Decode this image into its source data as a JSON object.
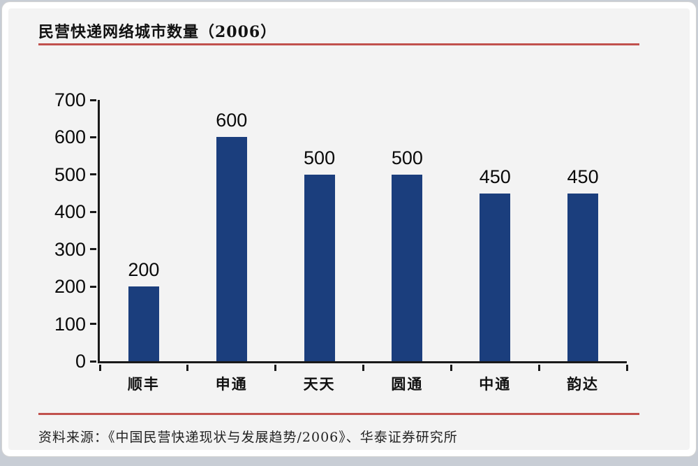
{
  "chart_data": {
    "type": "bar",
    "title": "民营快递网络城市数量（2006）",
    "categories": [
      "顺丰",
      "申通",
      "天天",
      "圆通",
      "中通",
      "韵达"
    ],
    "values": [
      200,
      600,
      500,
      500,
      450,
      450
    ],
    "xlabel": "",
    "ylabel": "",
    "ylim": [
      0,
      700
    ],
    "ytick_step": 100,
    "yticks": [
      0,
      100,
      200,
      300,
      400,
      500,
      600,
      700
    ],
    "grid": false,
    "legend": "none",
    "bar_color": "#1b3e7d"
  },
  "footer": {
    "source": "资料来源：《中国民营快递现状与发展趋势/2006》、华泰证券研究所"
  },
  "colors": {
    "accent_red": "#c1514d",
    "bar_navy": "#1b3e7d",
    "axis_black": "#1a1a1a",
    "panel_gray": "#f3f3f3",
    "page_band_gray": "#c8cdd5"
  }
}
